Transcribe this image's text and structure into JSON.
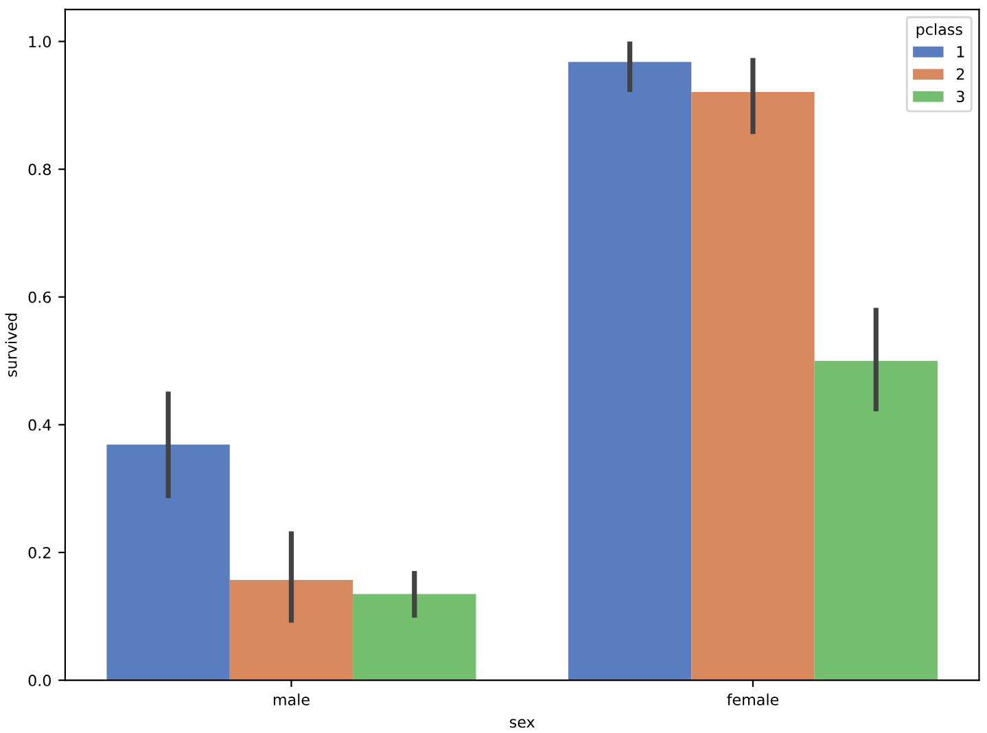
{
  "chart_data": {
    "type": "bar",
    "xlabel": "sex",
    "ylabel": "survived",
    "legend_title": "pclass",
    "legend": "top right",
    "categories": [
      "male",
      "female"
    ],
    "series": [
      {
        "name": "1",
        "color": "#5a7dbf",
        "values": [
          0.369,
          0.968
        ],
        "errors": [
          [
            0.285,
            0.452
          ],
          [
            0.921,
            1.0
          ]
        ]
      },
      {
        "name": "2",
        "color": "#d8895e",
        "values": [
          0.157,
          0.921
        ],
        "errors": [
          [
            0.09,
            0.233
          ],
          [
            0.855,
            0.974
          ]
        ]
      },
      {
        "name": "3",
        "color": "#74bf6e",
        "values": [
          0.135,
          0.5
        ],
        "errors": [
          [
            0.098,
            0.171
          ],
          [
            0.421,
            0.583
          ]
        ]
      }
    ],
    "ylim": [
      0,
      1.05
    ],
    "yticks": [
      {
        "value": 0,
        "label": "0.0"
      },
      0.2,
      0.4,
      0.6,
      0.8,
      {
        "value": 1,
        "label": "1.0"
      }
    ]
  }
}
